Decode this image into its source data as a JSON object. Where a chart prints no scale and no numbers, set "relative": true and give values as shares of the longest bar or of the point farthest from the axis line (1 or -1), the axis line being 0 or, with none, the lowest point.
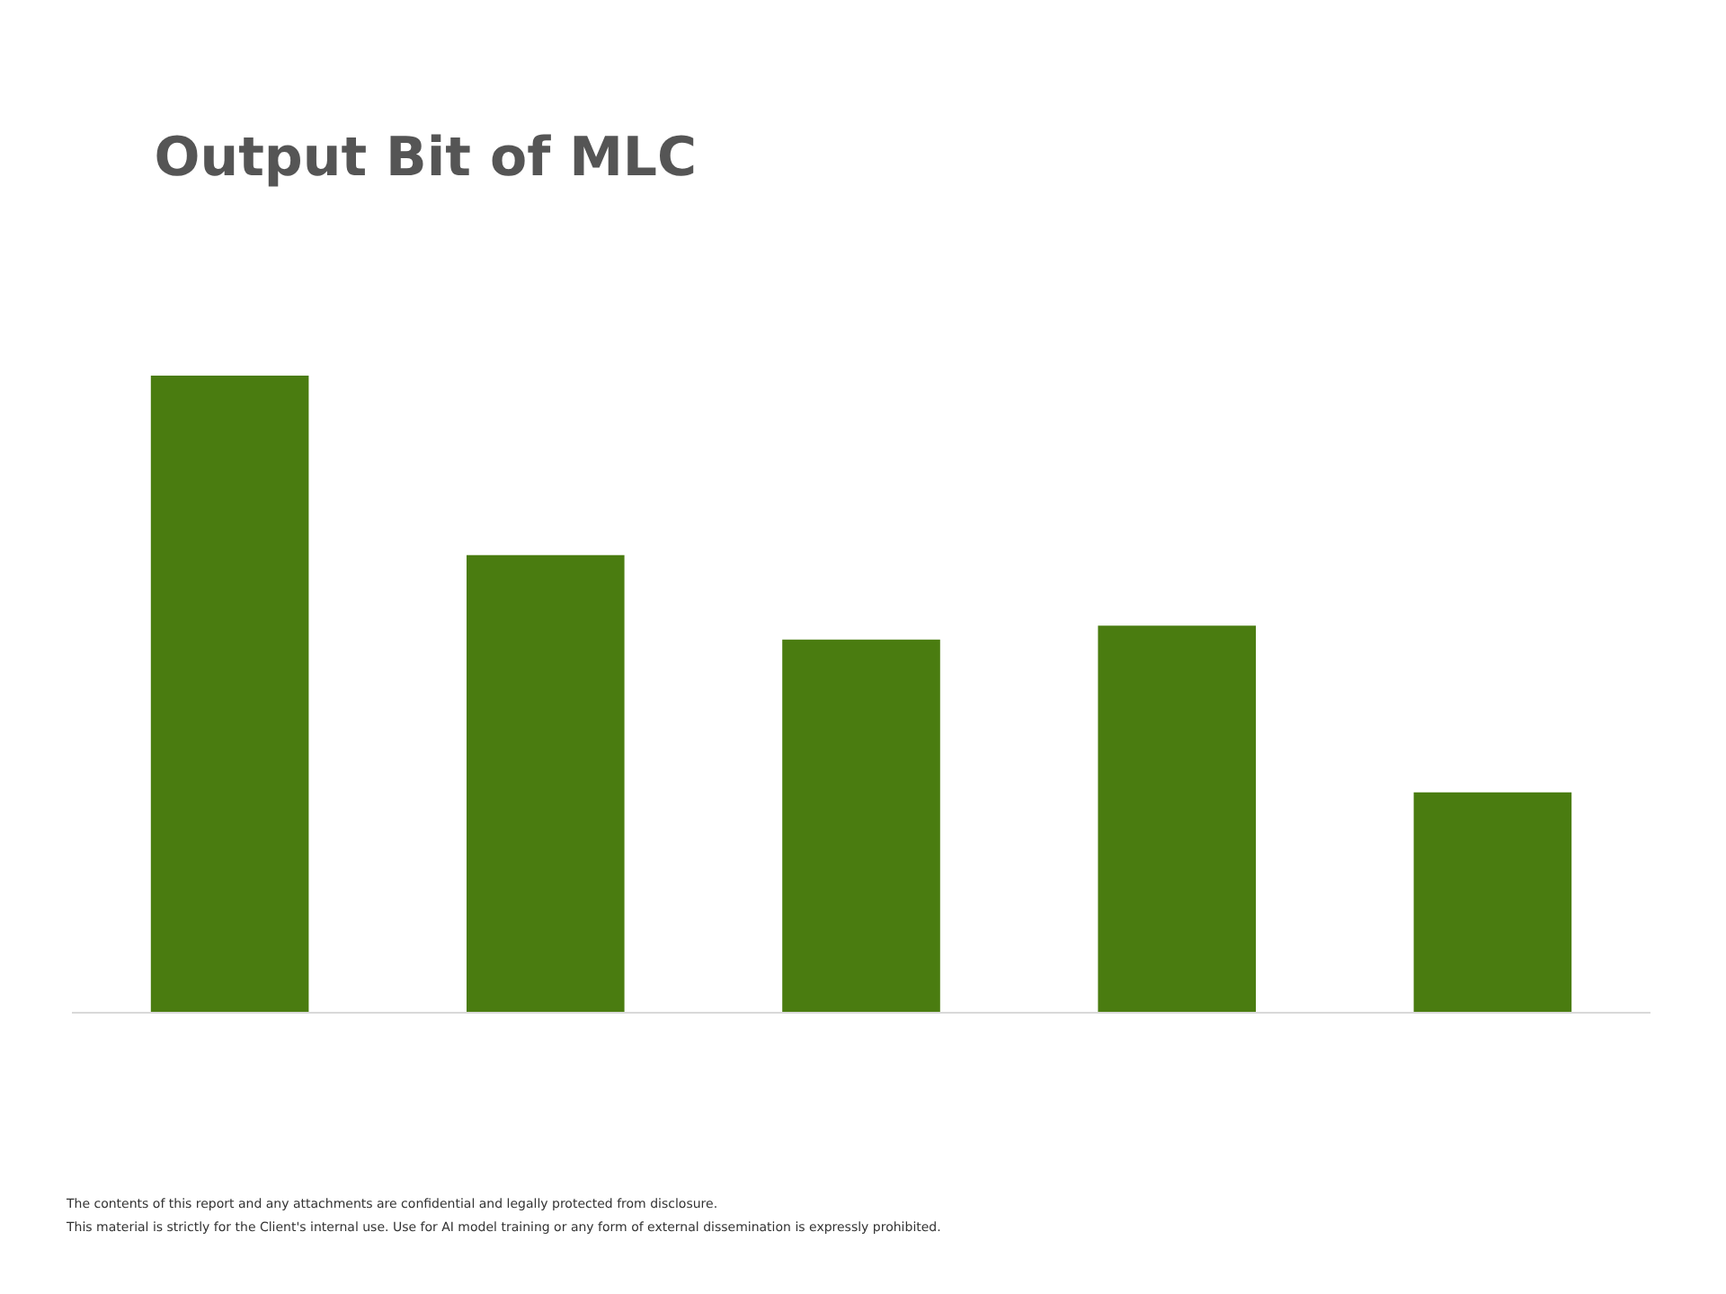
{
  "chart_data": {
    "type": "bar",
    "title": "Output Bit of MLC",
    "categories": [
      null,
      null,
      null,
      null,
      null
    ],
    "values": [
      1,
      0.718,
      0.585,
      0.607,
      0.345
    ],
    "color": "#4a7c10",
    "relative": true,
    "legend": false,
    "annotations": [
      "The contents of this report and any attachments are confidential and legally protected from disclosure.",
      "This material is strictly for the Client's internal use. Use for AI model training or any form of external dissemination is expressly prohibited."
    ]
  }
}
